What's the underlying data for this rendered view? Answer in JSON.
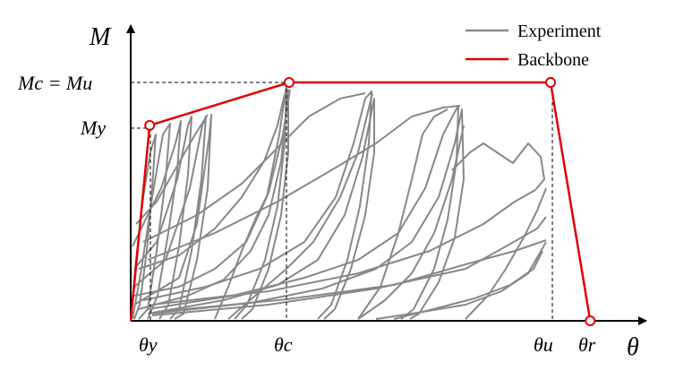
{
  "diagram": {
    "axes": {
      "x_label": "θ",
      "y_label": "M"
    },
    "y_ticks": {
      "peak": "Mc = Mu",
      "yield": "My"
    },
    "x_ticks": {
      "yield": "θy",
      "capping": "θc",
      "ultimate": "θu",
      "residual": "θr"
    },
    "legend": [
      {
        "label": "Experiment",
        "color": "#888888"
      },
      {
        "label": "Backbone",
        "color": "#e00000"
      }
    ],
    "backbone_points": [
      {
        "name": "origin",
        "theta": 0,
        "moment": 0
      },
      {
        "name": "yield",
        "theta": 0.12,
        "moment": 0.82
      },
      {
        "name": "capping",
        "theta": 1.0,
        "moment": 1.0
      },
      {
        "name": "ultimate",
        "theta": 2.65,
        "moment": 1.0
      },
      {
        "name": "residual",
        "theta": 2.9,
        "moment": 0
      }
    ],
    "colors": {
      "experiment": "#888888",
      "backbone": "#e00000",
      "axis": "#000000",
      "guide": "#000000"
    }
  }
}
